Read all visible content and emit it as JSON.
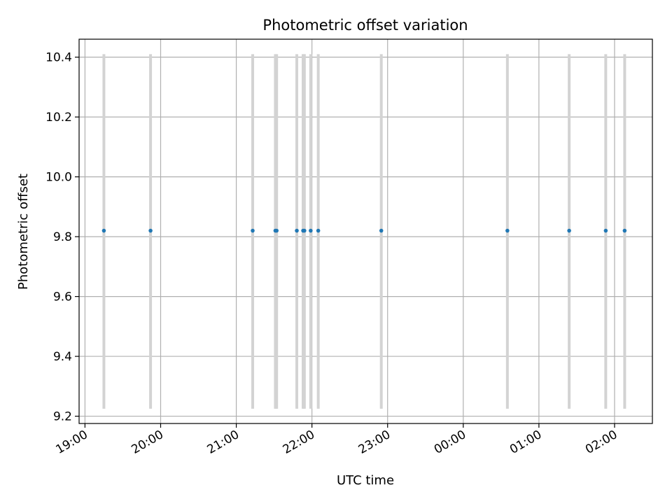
{
  "chart_data": {
    "type": "scatter",
    "title": "Photometric offset variation",
    "xlabel": "UTC time",
    "ylabel": "Photometric offset",
    "x_is_time": true,
    "xlim": [
      "19:00",
      "02:30"
    ],
    "ylim": [
      9.2,
      10.46
    ],
    "grid": true,
    "legend": null,
    "colors": {
      "marker": "#1f77b4",
      "errorbar": "#d3d3d3",
      "grid": "#b0b0b0",
      "axes": "#000000"
    },
    "x_ticks": [
      "19:00",
      "20:00",
      "21:00",
      "22:00",
      "23:00",
      "00:00",
      "01:00",
      "02:00"
    ],
    "y_ticks": [
      "9.2",
      "9.4",
      "9.6",
      "9.8",
      "10.0",
      "10.2",
      "10.4"
    ],
    "series": [
      {
        "times": [
          "19:15",
          "19:52",
          "21:13",
          "21:31",
          "21:32",
          "21:48",
          "21:53",
          "21:54",
          "21:59",
          "22:05",
          "22:55",
          "00:35",
          "01:24",
          "01:53",
          "02:08"
        ],
        "y": [
          9.82,
          9.82,
          9.82,
          9.82,
          9.82,
          9.82,
          9.82,
          9.82,
          9.82,
          9.82,
          9.82,
          9.82,
          9.82,
          9.82,
          9.82
        ],
        "yerr_low": [
          9.225,
          9.225,
          9.225,
          9.225,
          9.225,
          9.225,
          9.225,
          9.225,
          9.225,
          9.225,
          9.225,
          9.225,
          9.225,
          9.225,
          9.225
        ],
        "yerr_high": [
          10.41,
          10.41,
          10.41,
          10.41,
          10.41,
          10.41,
          10.41,
          10.41,
          10.41,
          10.41,
          10.41,
          10.41,
          10.41,
          10.41,
          10.41
        ]
      }
    ]
  }
}
